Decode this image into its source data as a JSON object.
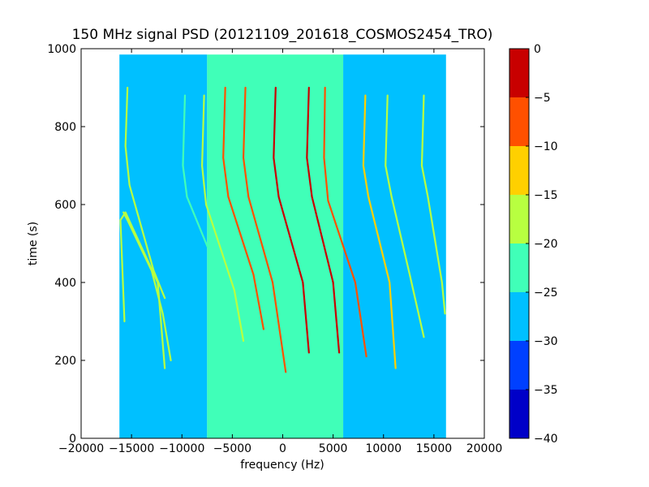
{
  "chart_data": {
    "type": "heatmap",
    "title": "150 MHz signal PSD (20121109_201618_COSMOS2454_TRO)",
    "xlabel": "frequency (Hz)",
    "ylabel": "time (s)",
    "xlim": [
      -20000,
      20000
    ],
    "ylim": [
      0,
      1000
    ],
    "x_ticks": [
      -20000,
      -15000,
      -10000,
      -5000,
      0,
      5000,
      10000,
      15000,
      20000
    ],
    "x_tick_labels": [
      "−20000",
      "−15000",
      "−10000",
      "−5000",
      "0",
      "5000",
      "10000",
      "15000",
      "20000"
    ],
    "y_ticks": [
      0,
      200,
      400,
      600,
      800,
      1000
    ],
    "y_tick_labels": [
      "0",
      "200",
      "400",
      "600",
      "800",
      "1000"
    ],
    "data_extent": {
      "x": [
        -16200,
        16200
      ],
      "y": [
        0,
        985
      ]
    },
    "background_levels": [
      {
        "x_from": -16200,
        "x_to": -7500,
        "level": -27.5
      },
      {
        "x_from": -7500,
        "x_to": 6000,
        "level": -22.5
      },
      {
        "x_from": 6000,
        "x_to": 16200,
        "level": -27.5
      }
    ],
    "signal_traces": [
      {
        "x": [
          -15700,
          -16100,
          -15600,
          -12400,
          -11700
        ],
        "y": [
          300,
          560,
          580,
          400,
          180
        ],
        "level": -20
      },
      {
        "x": [
          -15800,
          -15400,
          -13000,
          -11900,
          -11100
        ],
        "y": [
          580,
          560,
          430,
          320,
          200
        ],
        "level": -20
      },
      {
        "x": [
          -15400,
          -15600,
          -15200,
          -12800,
          -11700
        ],
        "y": [
          900,
          750,
          650,
          430,
          360
        ],
        "level": -20
      },
      {
        "x": [
          -9700,
          -9900,
          -9500,
          -6800,
          -5700
        ],
        "y": [
          880,
          700,
          620,
          450,
          330
        ],
        "level": -22.5
      },
      {
        "x": [
          -7800,
          -8000,
          -7600,
          -4800,
          -3900
        ],
        "y": [
          880,
          700,
          600,
          380,
          250
        ],
        "level": -20
      },
      {
        "x": [
          -5700,
          -5900,
          -5400,
          -2900,
          -1900
        ],
        "y": [
          900,
          720,
          620,
          420,
          280
        ],
        "level": -10
      },
      {
        "x": [
          -3700,
          -3900,
          -3400,
          -1000,
          300
        ],
        "y": [
          900,
          720,
          620,
          400,
          170
        ],
        "level": -10
      },
      {
        "x": [
          -700,
          -900,
          -400,
          2000,
          2600
        ],
        "y": [
          900,
          720,
          620,
          400,
          220
        ],
        "level": -5
      },
      {
        "x": [
          2600,
          2400,
          2900,
          5000,
          5600
        ],
        "y": [
          900,
          720,
          620,
          400,
          220
        ],
        "level": -5
      },
      {
        "x": [
          4200,
          4100,
          4500,
          7200,
          8300
        ],
        "y": [
          900,
          720,
          610,
          400,
          210
        ],
        "level": -10
      },
      {
        "x": [
          8200,
          8000,
          8500,
          10600,
          11200
        ],
        "y": [
          880,
          700,
          620,
          400,
          180
        ],
        "level": -15
      },
      {
        "x": [
          10400,
          10200,
          10800,
          12600,
          14000
        ],
        "y": [
          880,
          700,
          620,
          420,
          260
        ],
        "level": -20
      },
      {
        "x": [
          14000,
          13800,
          14400,
          15800,
          16100
        ],
        "y": [
          880,
          700,
          620,
          400,
          320
        ],
        "level": -20
      }
    ],
    "colorbar": {
      "range": [
        -40,
        0
      ],
      "ticks": [
        0,
        -5,
        -10,
        -15,
        -20,
        -25,
        -30,
        -35,
        -40
      ],
      "tick_labels": [
        "0",
        "−5",
        "−10",
        "−15",
        "−20",
        "−25",
        "−30",
        "−35",
        "−40"
      ],
      "levels": [
        {
          "from": -40,
          "to": -35,
          "color": "#0000c8"
        },
        {
          "from": -35,
          "to": -30,
          "color": "#0040ff"
        },
        {
          "from": -30,
          "to": -25,
          "color": "#00c0ff"
        },
        {
          "from": -25,
          "to": -20,
          "color": "#40ffb8"
        },
        {
          "from": -20,
          "to": -15,
          "color": "#b8ff40"
        },
        {
          "from": -15,
          "to": -10,
          "color": "#ffd000"
        },
        {
          "from": -10,
          "to": -5,
          "color": "#ff5000"
        },
        {
          "from": -5,
          "to": 0,
          "color": "#c80000"
        }
      ]
    },
    "grid": false,
    "colormap": "jet"
  }
}
